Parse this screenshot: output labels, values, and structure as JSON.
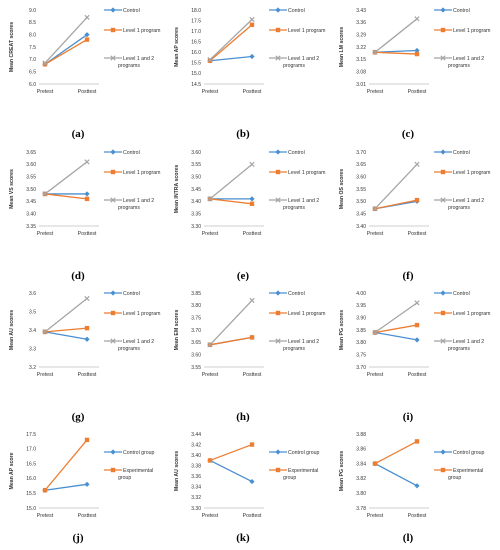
{
  "colors": {
    "control": "#4a8fd0",
    "level1": "#ed7d31",
    "level12": "#a5a5a5",
    "axis": "#bfbfbf",
    "text": "#333333"
  },
  "chart_data": [
    {
      "label": "(a)",
      "type": "line",
      "ylabel": "Mean CREAT scores",
      "categories": [
        "Pretest",
        "Posttest"
      ],
      "ylim": [
        6,
        9
      ],
      "yticks": [
        6,
        6.5,
        7,
        7.5,
        8,
        8.5,
        9
      ],
      "series": [
        {
          "name": "Control",
          "key": "control",
          "values": [
            6.8,
            8.0
          ]
        },
        {
          "name": "Level 1 program",
          "key": "level1",
          "values": [
            6.8,
            7.8
          ]
        },
        {
          "name": "Level 1 and 2 programs",
          "key": "level12",
          "values": [
            6.85,
            8.7
          ]
        }
      ]
    },
    {
      "label": "(b)",
      "type": "line",
      "ylabel": "Mean AP scores",
      "categories": [
        "Pretest",
        "Posttest"
      ],
      "ylim": [
        14.5,
        18
      ],
      "yticks": [
        14.5,
        15,
        15.5,
        16,
        16.5,
        17,
        17.5,
        18
      ],
      "series": [
        {
          "name": "Control",
          "key": "control",
          "values": [
            15.6,
            15.8
          ]
        },
        {
          "name": "Level 1 program",
          "key": "level1",
          "values": [
            15.6,
            17.3
          ]
        },
        {
          "name": "Level 1 and 2 programs",
          "key": "level12",
          "values": [
            15.65,
            17.55
          ]
        }
      ]
    },
    {
      "label": "(c)",
      "type": "line",
      "ylabel": "Mean LM scores",
      "categories": [
        "Pretest",
        "Posttest"
      ],
      "ylim": [
        3.01,
        3.43
      ],
      "yticks": [
        3.01,
        3.08,
        3.15,
        3.22,
        3.29,
        3.36,
        3.43
      ],
      "series": [
        {
          "name": "Control",
          "key": "control",
          "values": [
            3.19,
            3.2
          ]
        },
        {
          "name": "Level 1 program",
          "key": "level1",
          "values": [
            3.19,
            3.18
          ]
        },
        {
          "name": "Level 1 and 2 programs",
          "key": "level12",
          "values": [
            3.19,
            3.38
          ]
        }
      ]
    },
    {
      "label": "(d)",
      "type": "line",
      "ylabel": "Mean VS scores",
      "categories": [
        "Pretest",
        "Posttest"
      ],
      "ylim": [
        3.35,
        3.65
      ],
      "yticks": [
        3.35,
        3.4,
        3.45,
        3.5,
        3.55,
        3.6,
        3.65
      ],
      "series": [
        {
          "name": "Control",
          "key": "control",
          "values": [
            3.48,
            3.48
          ]
        },
        {
          "name": "Level 1 program",
          "key": "level1",
          "values": [
            3.48,
            3.46
          ]
        },
        {
          "name": "Level 1 and 2 programs",
          "key": "level12",
          "values": [
            3.48,
            3.61
          ]
        }
      ]
    },
    {
      "label": "(e)",
      "type": "line",
      "ylabel": "Mean INTRA scores",
      "categories": [
        "Pretest",
        "Posttest"
      ],
      "ylim": [
        3.3,
        3.6
      ],
      "yticks": [
        3.3,
        3.35,
        3.4,
        3.45,
        3.5,
        3.55,
        3.6
      ],
      "series": [
        {
          "name": "Control",
          "key": "control",
          "values": [
            3.41,
            3.41
          ]
        },
        {
          "name": "Level 1 program",
          "key": "level1",
          "values": [
            3.41,
            3.39
          ]
        },
        {
          "name": "Level 1 and 2 programs",
          "key": "level12",
          "values": [
            3.41,
            3.55
          ]
        }
      ]
    },
    {
      "label": "(f)",
      "type": "line",
      "ylabel": "Mean OS scores",
      "categories": [
        "Pretest",
        "Posttest"
      ],
      "ylim": [
        3.4,
        3.7
      ],
      "yticks": [
        3.4,
        3.45,
        3.5,
        3.55,
        3.6,
        3.65,
        3.7
      ],
      "series": [
        {
          "name": "Control",
          "key": "control",
          "values": [
            3.47,
            3.5
          ]
        },
        {
          "name": "Level 1 program",
          "key": "level1",
          "values": [
            3.47,
            3.505
          ]
        },
        {
          "name": "Level 1 and 2 programs",
          "key": "level12",
          "values": [
            3.47,
            3.65
          ]
        }
      ]
    },
    {
      "label": "(g)",
      "type": "line",
      "ylabel": "Mean AU scores",
      "categories": [
        "Pretest",
        "Posttest"
      ],
      "ylim": [
        3.2,
        3.6
      ],
      "yticks": [
        3.2,
        3.3,
        3.4,
        3.5,
        3.6
      ],
      "series": [
        {
          "name": "Control",
          "key": "control",
          "values": [
            3.39,
            3.35
          ]
        },
        {
          "name": "Level 1 program",
          "key": "level1",
          "values": [
            3.39,
            3.41
          ]
        },
        {
          "name": "Level 1 and 2 programs",
          "key": "level12",
          "values": [
            3.39,
            3.57
          ]
        }
      ]
    },
    {
      "label": "(h)",
      "type": "line",
      "ylabel": "Mean EM scores",
      "categories": [
        "Pretest",
        "Posttest"
      ],
      "ylim": [
        3.55,
        3.85
      ],
      "yticks": [
        3.55,
        3.6,
        3.65,
        3.7,
        3.75,
        3.8,
        3.85
      ],
      "series": [
        {
          "name": "Control",
          "key": "control",
          "values": [
            3.64,
            3.67
          ]
        },
        {
          "name": "Level 1 program",
          "key": "level1",
          "values": [
            3.64,
            3.67
          ]
        },
        {
          "name": "Level 1 and 2 programs",
          "key": "level12",
          "values": [
            3.64,
            3.82
          ]
        }
      ]
    },
    {
      "label": "(i)",
      "type": "line",
      "ylabel": "Mean PG scores",
      "categories": [
        "Pretest",
        "Posttest"
      ],
      "ylim": [
        3.7,
        4
      ],
      "yticks": [
        3.7,
        3.75,
        3.8,
        3.85,
        3.9,
        3.95,
        4
      ],
      "series": [
        {
          "name": "Control",
          "key": "control",
          "values": [
            3.84,
            3.81
          ]
        },
        {
          "name": "Level 1 program",
          "key": "level1",
          "values": [
            3.84,
            3.87
          ]
        },
        {
          "name": "Level 1 and 2 programs",
          "key": "level12",
          "values": [
            3.84,
            3.96
          ]
        }
      ]
    },
    {
      "label": "(j)",
      "type": "line",
      "ylabel": "Mean AP score",
      "categories": [
        "Pretest",
        "Posttest"
      ],
      "ylim": [
        15,
        17.5
      ],
      "yticks": [
        15,
        15.5,
        16,
        16.5,
        17,
        17.5
      ],
      "series": [
        {
          "name": "Control group",
          "key": "control",
          "values": [
            15.6,
            15.8
          ]
        },
        {
          "name": "Experimental group",
          "key": "level1",
          "values": [
            15.6,
            17.3
          ]
        }
      ]
    },
    {
      "label": "(k)",
      "type": "line",
      "ylabel": "Mean AU scores",
      "categories": [
        "Pretest",
        "Posttest"
      ],
      "ylim": [
        3.3,
        3.44
      ],
      "yticks": [
        3.3,
        3.32,
        3.34,
        3.36,
        3.38,
        3.4,
        3.42,
        3.44
      ],
      "series": [
        {
          "name": "Control group",
          "key": "control",
          "values": [
            3.39,
            3.35
          ]
        },
        {
          "name": "Experimental group",
          "key": "level1",
          "values": [
            3.39,
            3.42
          ]
        }
      ]
    },
    {
      "label": "(l)",
      "type": "line",
      "ylabel": "Mean PG scores",
      "categories": [
        "Pretest",
        "Posttest"
      ],
      "ylim": [
        3.78,
        3.88
      ],
      "yticks": [
        3.78,
        3.8,
        3.82,
        3.84,
        3.86,
        3.88
      ],
      "series": [
        {
          "name": "Control group",
          "key": "control",
          "values": [
            3.84,
            3.81
          ]
        },
        {
          "name": "Experimental group",
          "key": "level1",
          "values": [
            3.84,
            3.87
          ]
        }
      ]
    }
  ]
}
